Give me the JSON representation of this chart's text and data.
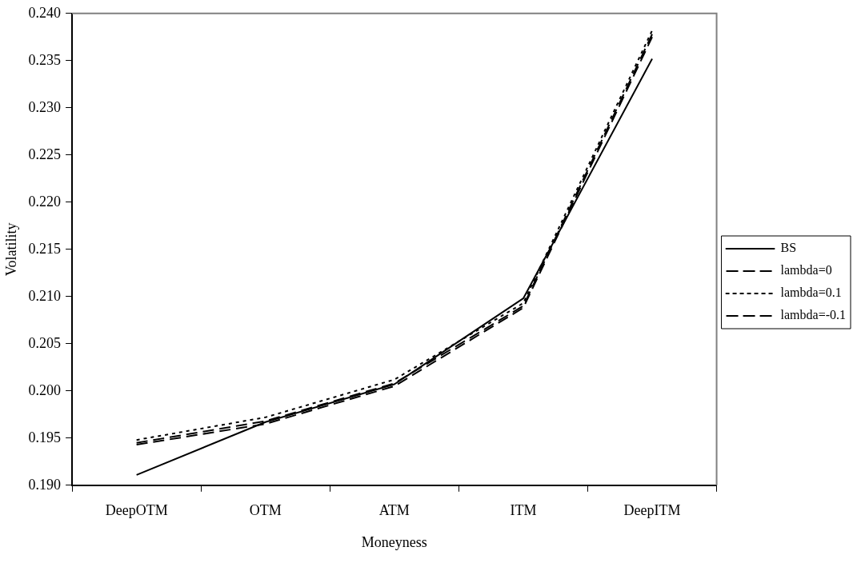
{
  "chart_data": {
    "type": "line",
    "xlabel": "Moneyness",
    "ylabel": "Volatility",
    "categories": [
      "DeepOTM",
      "OTM",
      "ATM",
      "ITM",
      "DeepITM"
    ],
    "series": [
      {
        "name": "BS",
        "color": "#000000",
        "line_style": "solid",
        "values": [
          0.1911,
          0.1967,
          0.2007,
          0.2098,
          0.2352
        ]
      },
      {
        "name": "lambda=0",
        "color": "#000000",
        "line_style": "dashed",
        "values": [
          0.1945,
          0.1968,
          0.2008,
          0.209,
          0.2378
        ]
      },
      {
        "name": "lambda=0.1",
        "color": "#000000",
        "line_style": "dotted",
        "values": [
          0.1948,
          0.1972,
          0.2012,
          0.2093,
          0.2382
        ]
      },
      {
        "name": "lambda=-0.1",
        "color": "#000000",
        "line_style": "dashed",
        "values": [
          0.1943,
          0.1965,
          0.2005,
          0.2088,
          0.2375
        ]
      }
    ],
    "ylim": [
      0.19,
      0.24
    ],
    "yticks": [
      {
        "value": 0.19,
        "label": "0.190"
      },
      {
        "value": 0.195,
        "label": "0.195"
      },
      {
        "value": 0.2,
        "label": "0.200"
      },
      {
        "value": 0.205,
        "label": "0.205"
      },
      {
        "value": 0.21,
        "label": "0.210"
      },
      {
        "value": 0.215,
        "label": "0.215"
      },
      {
        "value": 0.22,
        "label": "0.220"
      },
      {
        "value": 0.225,
        "label": "0.225"
      },
      {
        "value": 0.23,
        "label": "0.230"
      },
      {
        "value": 0.235,
        "label": "0.235"
      },
      {
        "value": 0.24,
        "label": "0.240"
      }
    ],
    "grid": false,
    "legend": "right",
    "marker": "none"
  }
}
